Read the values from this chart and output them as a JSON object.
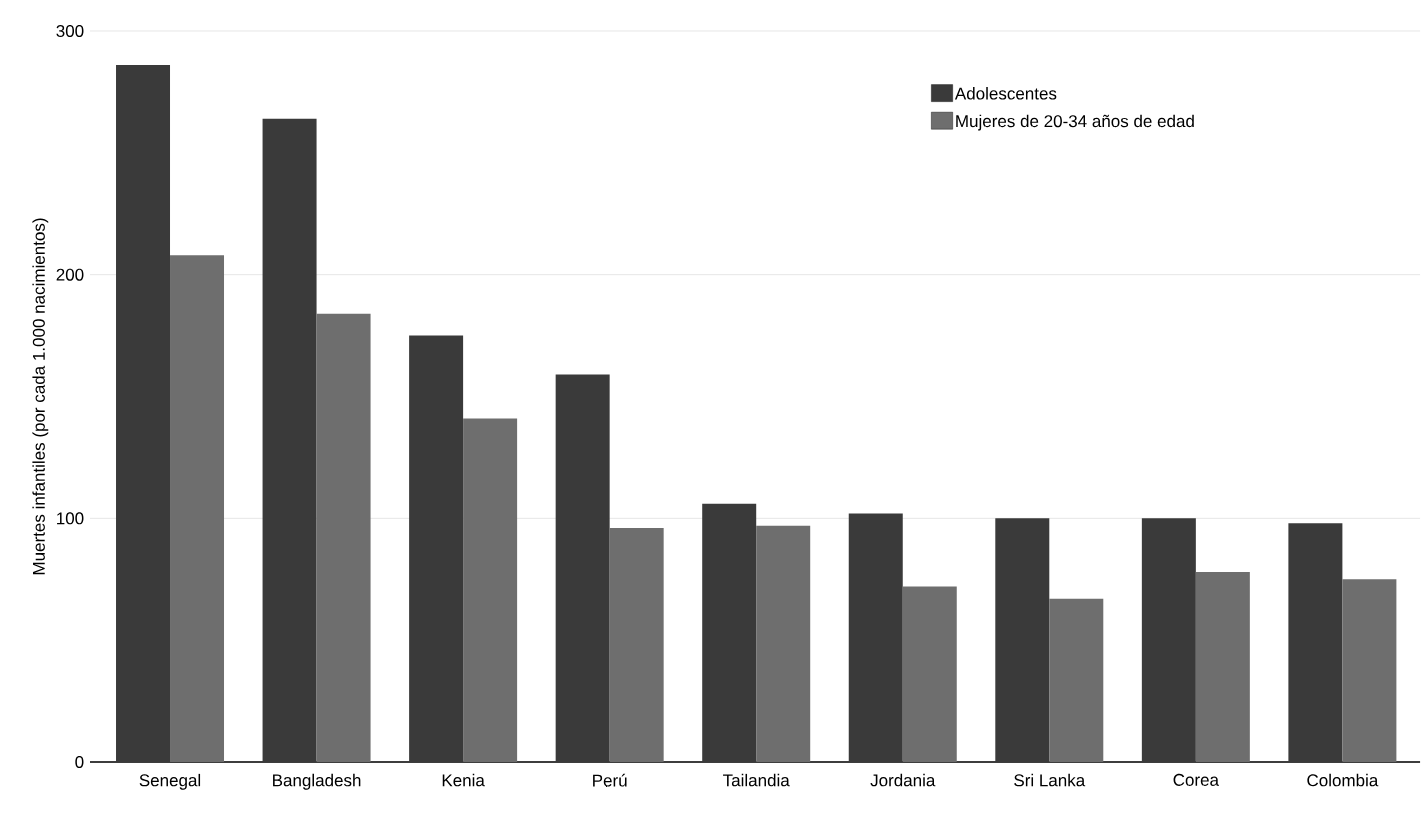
{
  "chart_data": {
    "type": "bar",
    "ylabel": "Muertes infantiles (por cada 1.000 nacimientos)",
    "categories": [
      "Senegal",
      "Bangladesh",
      "Kenia",
      "Perú",
      "Tailandia",
      "Jordania",
      "Sri Lanka",
      "Corea",
      "Colombia"
    ],
    "series": [
      {
        "name": "Adolescentes",
        "color": "#3a3a3a",
        "values": [
          286,
          264,
          175,
          159,
          106,
          102,
          100,
          100,
          98
        ]
      },
      {
        "name": "Mujeres de 20-34 años de edad",
        "color": "#6e6e6e",
        "values": [
          208,
          184,
          141,
          96,
          97,
          72,
          67,
          78,
          75
        ]
      }
    ],
    "ylim": [
      0,
      300
    ],
    "yticks": [
      0,
      100,
      200,
      300
    ],
    "grid": "y",
    "legend": "top right"
  }
}
